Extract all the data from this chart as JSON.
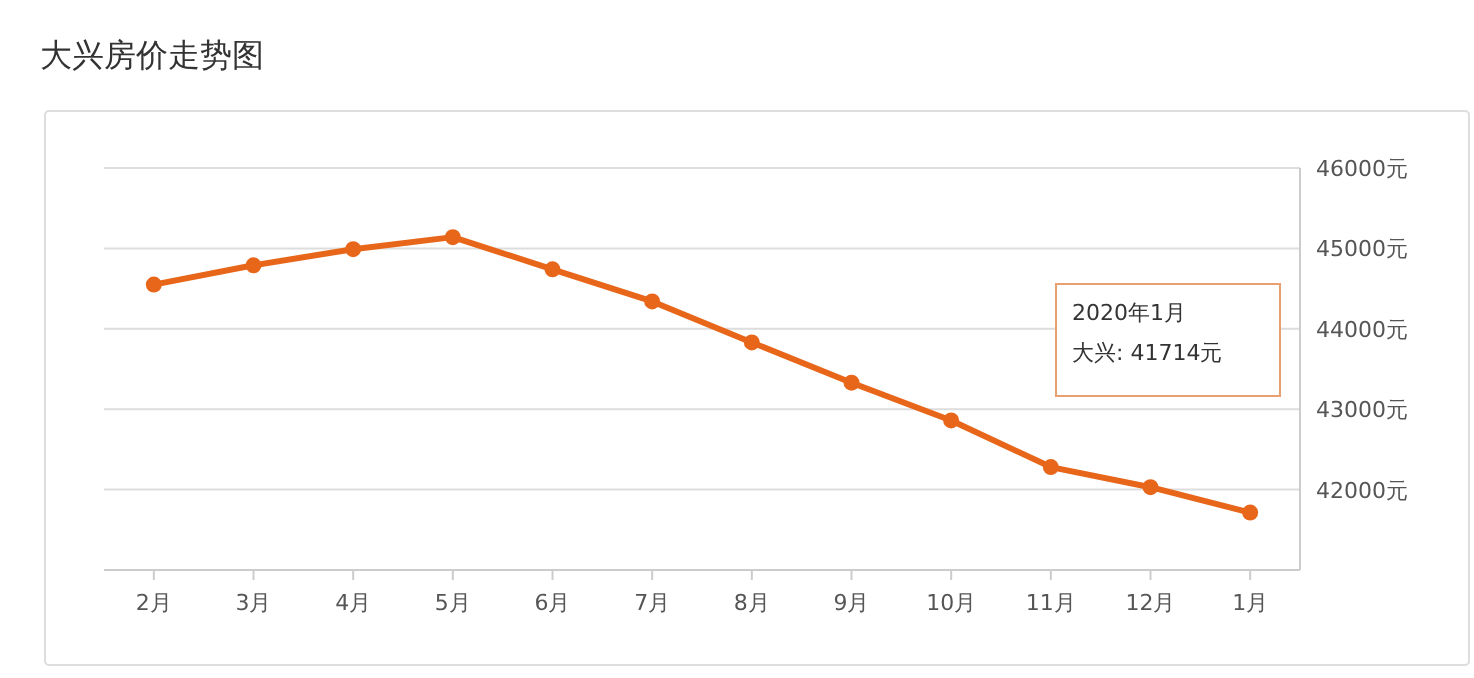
{
  "chart_data": {
    "type": "line",
    "title": "大兴房价走势图",
    "categories": [
      "2月",
      "3月",
      "4月",
      "5月",
      "6月",
      "7月",
      "8月",
      "9月",
      "10月",
      "11月",
      "12月",
      "1月"
    ],
    "series": [
      {
        "color": "#e8661a",
        "values": [
          44550,
          44790,
          44990,
          45140,
          44740,
          44340,
          43830,
          43330,
          42860,
          42280,
          42030,
          41714
        ]
      }
    ],
    "ylim": [
      41000,
      46000
    ],
    "yticks": [
      {
        "value": 42000,
        "label": "42000元"
      },
      {
        "value": 43000,
        "label": "43000元"
      },
      {
        "value": 44000,
        "label": "44000元"
      },
      {
        "value": 45000,
        "label": "45000元"
      },
      {
        "value": 46000,
        "label": "46000元"
      }
    ],
    "grid": "y",
    "marker": "circle",
    "line_style": "solid",
    "annotations": [
      "2020年1月",
      "大兴:  41714元"
    ]
  }
}
